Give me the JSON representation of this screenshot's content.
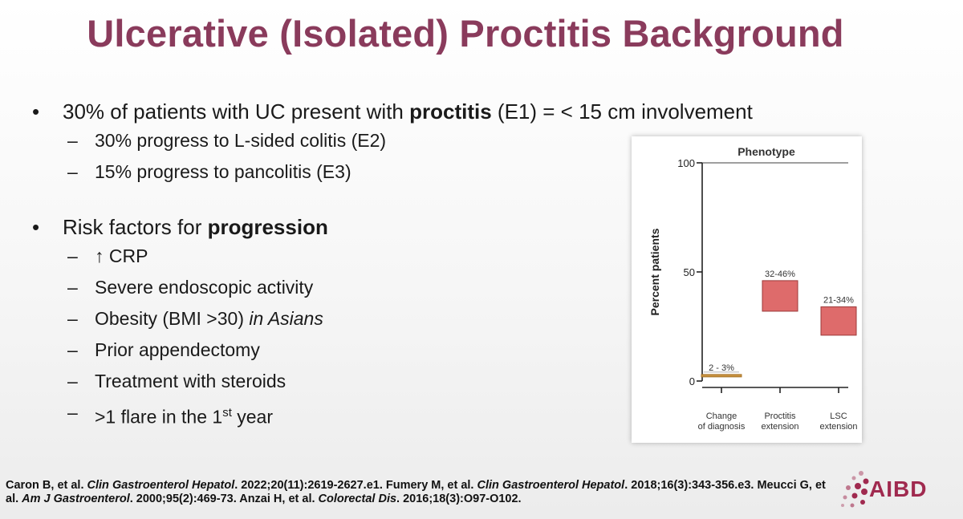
{
  "slide": {
    "title": "Ulcerative (Isolated) Proctitis Background"
  },
  "bullets": {
    "first": {
      "marker": "•",
      "pre": "30% of patients with UC present with ",
      "bold": "proctitis",
      "post": " (E1) = < 15 cm involvement",
      "subs": [
        {
          "dash": "–",
          "text": "30% progress to L-sided colitis (E2)"
        },
        {
          "dash": "–",
          "text": "15% progress to pancolitis (E3)"
        }
      ]
    },
    "second": {
      "marker": "•",
      "pre": "Risk factors for ",
      "bold": "progression",
      "subs": [
        {
          "dash": "–",
          "text": "↑ CRP"
        },
        {
          "dash": "–",
          "text": "Severe endoscopic activity"
        },
        {
          "dash": "–",
          "pre": "Obesity (BMI >30) ",
          "italic": "in Asians"
        },
        {
          "dash": "–",
          "text": "Prior appendectomy"
        },
        {
          "dash": "–",
          "text": "Treatment with steroids"
        },
        {
          "dash": "–",
          "pre": ">1 flare in the 1",
          "sup": "st",
          "post": " year"
        }
      ]
    }
  },
  "chart_data": {
    "type": "floating-bar",
    "title": "Phenotype",
    "ylabel": "Percent patients",
    "ylim": [
      0,
      100
    ],
    "yticks": [
      0,
      50,
      100
    ],
    "categories": [
      "Change of diagnosis",
      "Proctitis extension",
      "LSC extension"
    ],
    "category_lines": [
      [
        "Change",
        "of diagnosis"
      ],
      [
        "Proctitis",
        "extension"
      ],
      [
        "LSC",
        "extension"
      ]
    ],
    "ranges": [
      [
        2,
        3
      ],
      [
        32,
        46
      ],
      [
        21,
        34
      ]
    ],
    "range_labels": [
      "2 - 3%",
      "32-46%",
      "21-34%"
    ],
    "colors": [
      "#c8923f",
      "#de6b6b",
      "#de6b6b"
    ],
    "reference_line": 100
  },
  "references": {
    "parts": [
      {
        "t": "Caron B, et al. "
      },
      {
        "t": "Clin Gastroenterol Hepatol",
        "i": true
      },
      {
        "t": ". 2022;20(11):2619-2627.e1. Fumery M, et al. "
      },
      {
        "t": "Clin Gastroenterol Hepatol",
        "i": true
      },
      {
        "t": ". 2018;16(3):343-356.e3. Meucci G, et al. "
      },
      {
        "t": "Am J Gastroenterol",
        "i": true
      },
      {
        "t": ". 2000;95(2):469-73. Anzai H, et al. "
      },
      {
        "t": "Colorectal Dis",
        "i": true
      },
      {
        "t": ". 2016;18(3):O97-O102."
      }
    ]
  },
  "logo": {
    "text": "AIBD",
    "color": "#a02a4f"
  }
}
